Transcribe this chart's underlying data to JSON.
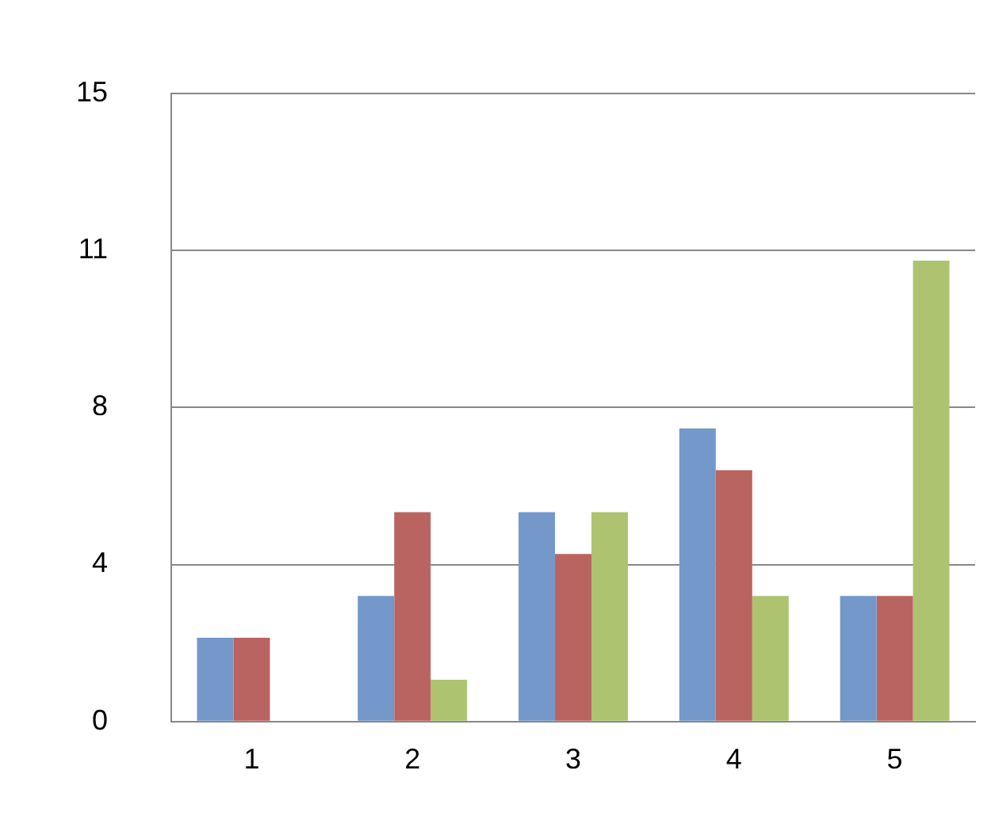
{
  "chart_data": {
    "type": "bar",
    "categories": [
      "1",
      "2",
      "3",
      "4",
      "5"
    ],
    "series": [
      {
        "color": "#7398c9",
        "values": [
          2,
          3,
          5,
          7,
          3
        ]
      },
      {
        "color": "#b96460",
        "values": [
          2,
          5,
          4,
          6,
          3
        ]
      },
      {
        "color": "#adc36f",
        "values": [
          null,
          1,
          5,
          3,
          11
        ]
      }
    ],
    "ylim": [
      0,
      15
    ],
    "yticks": [
      0,
      {
        "value": 3.75,
        "label": "4"
      },
      {
        "value": 7.5,
        "label": "8"
      },
      {
        "value": 11.25,
        "label": "11"
      },
      15
    ],
    "grid": "y",
    "legend": false
  }
}
